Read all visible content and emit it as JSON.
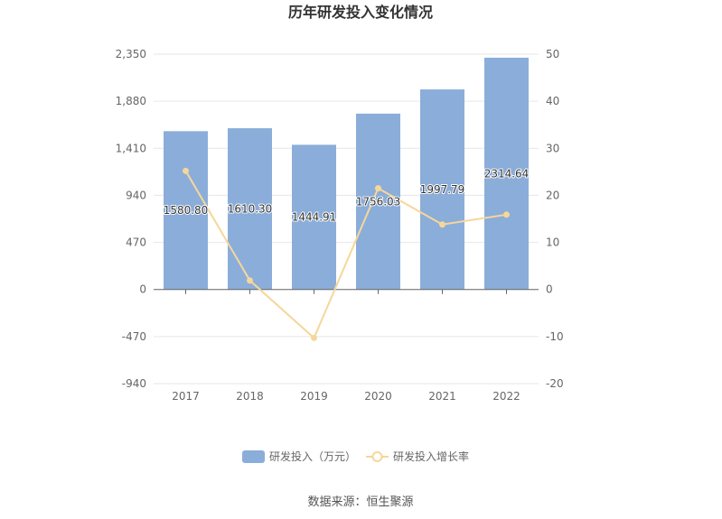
{
  "chart_data": {
    "type": "bar",
    "title": "历年研发投入变化情况",
    "categories": [
      "2017",
      "2018",
      "2019",
      "2020",
      "2021",
      "2022"
    ],
    "series": [
      {
        "name": "研发投入（万元）",
        "type": "bar",
        "axis": "left",
        "values": [
          1580.8,
          1610.3,
          1444.91,
          1756.03,
          1997.79,
          2314.64
        ],
        "labels": [
          "1580.80",
          "1610.30",
          "1444.91",
          "1756.03",
          "1997.79",
          "2314.64"
        ],
        "color": "#8badd9"
      },
      {
        "name": "研发投入增长率",
        "type": "line",
        "axis": "right",
        "values": [
          25.2,
          1.9,
          -10.3,
          21.5,
          13.8,
          15.9
        ],
        "color": "#f5d79a"
      }
    ],
    "y_left": {
      "ticks": [
        "2,350",
        "1,880",
        "1,410",
        "940",
        "470",
        "0",
        "-470",
        "-940"
      ],
      "min": -940,
      "max": 2350
    },
    "y_right": {
      "ticks": [
        "50",
        "40",
        "30",
        "20",
        "10",
        "0",
        "-10",
        "-20"
      ],
      "min": -20,
      "max": 50
    },
    "grid": true,
    "legend_position": "bottom"
  },
  "footer": {
    "source": "数据来源：恒生聚源"
  }
}
